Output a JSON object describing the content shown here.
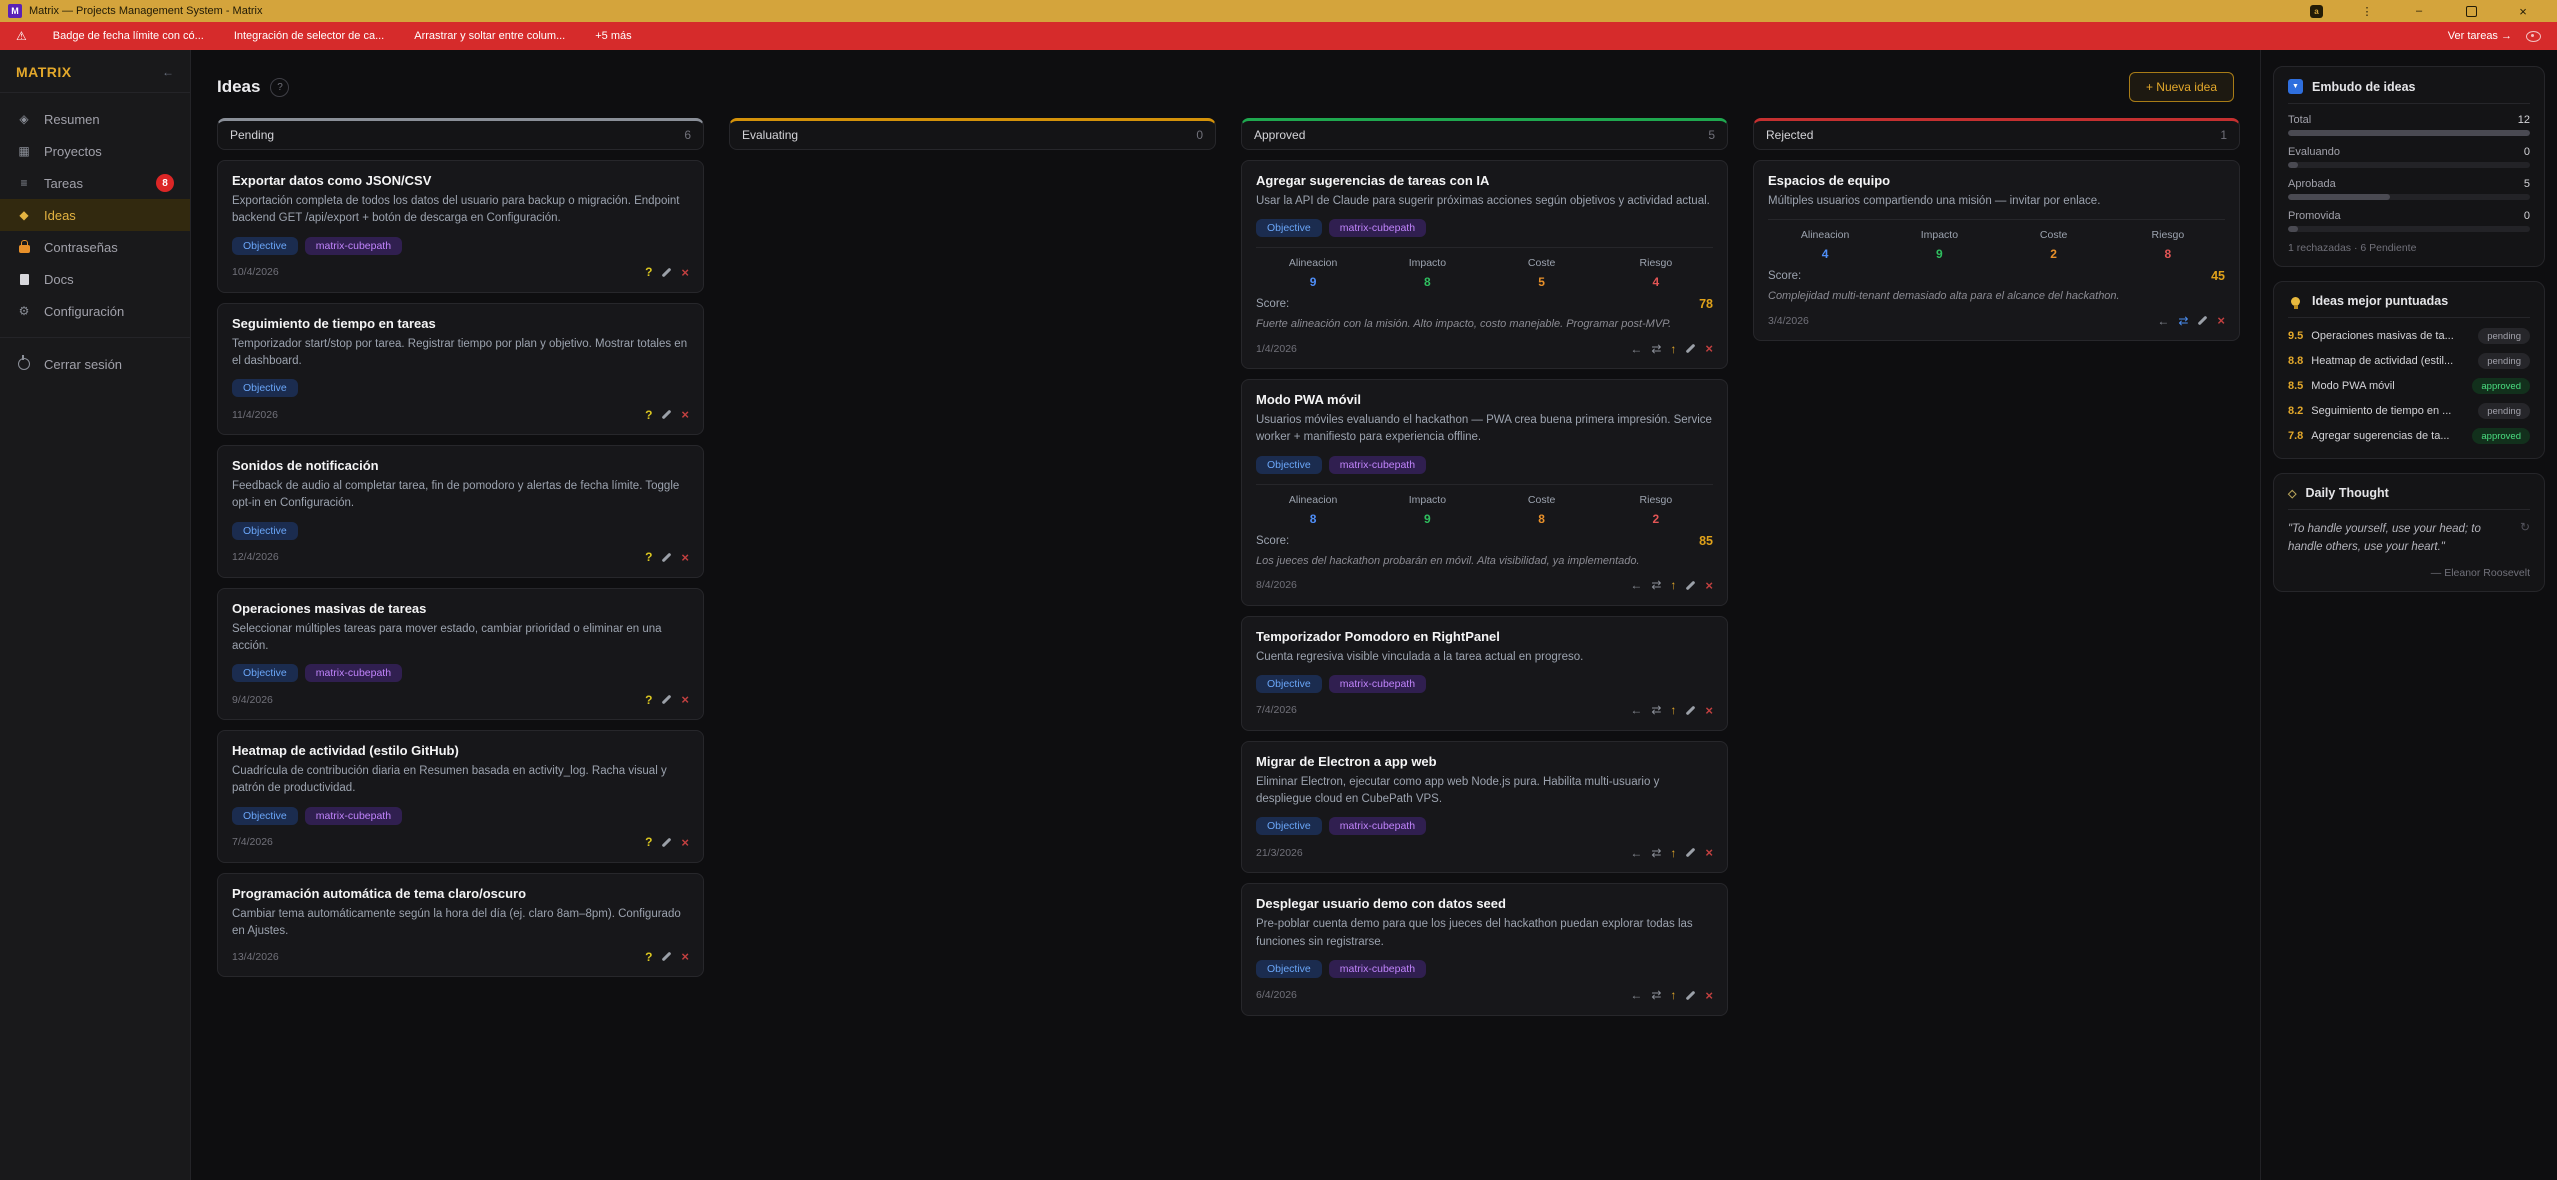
{
  "titlebar": {
    "icon_letter": "M",
    "title": "Matrix — Projects Management System - Matrix"
  },
  "banner": {
    "items": [
      "Badge de fecha límite con có...",
      "Integración de selector de ca...",
      "Arrastrar y soltar entre colum...",
      "+5 más"
    ],
    "action": "Ver tareas →"
  },
  "glyphs": {
    "warning": "⚠",
    "translate": "a",
    "menu": "⋮",
    "minimize": "–",
    "close": "×",
    "collapse": "←",
    "help": "?",
    "funnel": "▼",
    "refresh": "↻",
    "daily_icon": "◇",
    "overview-icon": "◈",
    "projects-icon": "▦",
    "tasks-icon": "≡",
    "ideas-icon": "◆",
    "gear-icon": "⚙",
    "help-action": "?",
    "delete-action": "×",
    "back-action": "←",
    "move-action": "⇄",
    "promote-action": "↑"
  },
  "sidebar": {
    "brand": "MATRIX",
    "items": [
      {
        "id": "resumen",
        "label": "Resumen",
        "icon": "overview-icon",
        "glyph": true
      },
      {
        "id": "proyectos",
        "label": "Proyectos",
        "icon": "projects-icon",
        "glyph": true
      },
      {
        "id": "tareas",
        "label": "Tareas",
        "icon": "tasks-icon",
        "glyph": true,
        "badge": "8"
      },
      {
        "id": "ideas",
        "label": "Ideas",
        "icon": "ideas-icon",
        "glyph": true,
        "active": true
      },
      {
        "id": "contrasenas",
        "label": "Contraseñas",
        "icon": "lock-icon",
        "glyph": false
      },
      {
        "id": "docs",
        "label": "Docs",
        "icon": "doc-icon",
        "glyph": false
      },
      {
        "id": "configuracion",
        "label": "Configuración",
        "icon": "gear-icon",
        "glyph": true
      }
    ],
    "logout": {
      "id": "cerrar-sesion",
      "label": "Cerrar sesión",
      "icon": "power-icon"
    }
  },
  "header": {
    "title": "Ideas",
    "new_idea_button": "+ Nueva idea"
  },
  "board": {
    "metric_labels": [
      "Alineacion",
      "Impacto",
      "Coste",
      "Riesgo"
    ],
    "metric_colors": [
      "#4f8ef7",
      "#2fbf5f",
      "#e8902a",
      "#e25555"
    ],
    "score_label": "Score:",
    "tag_labels": {
      "objective": "Objective",
      "matrix": "matrix-cubepath"
    },
    "columns": [
      {
        "name": "Pending",
        "count": "6",
        "accent": "#8a8f98",
        "cards": [
          {
            "title": "Exportar datos como JSON/CSV",
            "desc": "Exportación completa de todos los datos del usuario para backup o migración. Endpoint backend GET /api/export + botón de descarga en Configuración.",
            "tags": [
              "objective",
              "matrix"
            ],
            "date": "10/4/2026",
            "actions": [
              "help",
              "edit",
              "delete"
            ]
          },
          {
            "title": "Seguimiento de tiempo en tareas",
            "desc": "Temporizador start/stop por tarea. Registrar tiempo por plan y objetivo. Mostrar totales en el dashboard.",
            "tags": [
              "objective"
            ],
            "date": "11/4/2026",
            "actions": [
              "help",
              "edit",
              "delete"
            ]
          },
          {
            "title": "Sonidos de notificación",
            "desc": "Feedback de audio al completar tarea, fin de pomodoro y alertas de fecha límite. Toggle opt-in en Configuración.",
            "tags": [
              "objective"
            ],
            "date": "12/4/2026",
            "actions": [
              "help",
              "edit",
              "delete"
            ]
          },
          {
            "title": "Operaciones masivas de tareas",
            "desc": "Seleccionar múltiples tareas para mover estado, cambiar prioridad o eliminar en una acción.",
            "tags": [
              "objective",
              "matrix"
            ],
            "date": "9/4/2026",
            "actions": [
              "help",
              "edit",
              "delete"
            ]
          },
          {
            "title": "Heatmap de actividad (estilo GitHub)",
            "desc": "Cuadrícula de contribución diaria en Resumen basada en activity_log. Racha visual y patrón de productividad.",
            "tags": [
              "objective",
              "matrix"
            ],
            "date": "7/4/2026",
            "actions": [
              "help",
              "edit",
              "delete"
            ]
          },
          {
            "title": "Programación automática de tema claro/oscuro",
            "desc": "Cambiar tema automáticamente según la hora del día (ej. claro 8am–8pm). Configurado en Ajustes.",
            "tags": [],
            "date": "13/4/2026",
            "actions": [
              "help",
              "edit",
              "delete"
            ]
          }
        ]
      },
      {
        "name": "Evaluating",
        "count": "0",
        "accent": "#d4920a",
        "cards": []
      },
      {
        "name": "Approved",
        "count": "5",
        "accent": "#1fa84f",
        "cards": [
          {
            "title": "Agregar sugerencias de tareas con IA",
            "desc": "Usar la API de Claude para sugerir próximas acciones según objetivos y actividad actual.",
            "tags": [
              "objective",
              "matrix"
            ],
            "metrics": {
              "values": [
                "9",
                "8",
                "5",
                "4"
              ],
              "score": "78",
              "note": "Fuerte alineación con la misión. Alto impacto, costo manejable. Programar post-MVP."
            },
            "date": "1/4/2026",
            "actions": [
              "back",
              "move",
              "promote",
              "edit",
              "delete"
            ]
          },
          {
            "title": "Modo PWA móvil",
            "desc": "Usuarios móviles evaluando el hackathon — PWA crea buena primera impresión. Service worker + manifiesto para experiencia offline.",
            "tags": [
              "objective",
              "matrix"
            ],
            "metrics": {
              "values": [
                "8",
                "9",
                "8",
                "2"
              ],
              "score": "85",
              "note": "Los jueces del hackathon probarán en móvil. Alta visibilidad, ya implementado."
            },
            "date": "8/4/2026",
            "actions": [
              "back",
              "move",
              "promote",
              "edit",
              "delete"
            ]
          },
          {
            "title": "Temporizador Pomodoro en RightPanel",
            "desc": "Cuenta regresiva visible vinculada a la tarea actual en progreso.",
            "tags": [
              "objective",
              "matrix"
            ],
            "date": "7/4/2026",
            "actions": [
              "back",
              "move",
              "promote",
              "edit",
              "delete"
            ]
          },
          {
            "title": "Migrar de Electron a app web",
            "desc": "Eliminar Electron, ejecutar como app web Node.js pura. Habilita multi-usuario y despliegue cloud en CubePath VPS.",
            "tags": [
              "objective",
              "matrix"
            ],
            "date": "21/3/2026",
            "actions": [
              "back",
              "move",
              "promote",
              "edit",
              "delete"
            ]
          },
          {
            "title": "Desplegar usuario demo con datos seed",
            "desc": "Pre-poblar cuenta demo para que los jueces del hackathon puedan explorar todas las funciones sin registrarse.",
            "tags": [
              "objective",
              "matrix"
            ],
            "date": "6/4/2026",
            "actions": [
              "back",
              "move",
              "promote",
              "edit",
              "delete"
            ]
          }
        ]
      },
      {
        "name": "Rejected",
        "count": "1",
        "accent": "#c53030",
        "cards": [
          {
            "title": "Espacios de equipo",
            "desc": "Múltiples usuarios compartiendo una misión — invitar por enlace.",
            "tags": [],
            "metrics": {
              "values": [
                "4",
                "9",
                "2",
                "8"
              ],
              "score": "45",
              "note": "Complejidad multi-tenant demasiado alta para el alcance del hackathon."
            },
            "date": "3/4/2026",
            "actions": [
              "back",
              "move-active",
              "edit",
              "delete"
            ]
          }
        ]
      }
    ]
  },
  "right_panel": {
    "funnel": {
      "title": "Embudo de ideas",
      "rows": [
        {
          "label": "Total",
          "value": "12",
          "pct": 100
        },
        {
          "label": "Evaluando",
          "value": "0",
          "pct": 4
        },
        {
          "label": "Aprobada",
          "value": "5",
          "pct": 42
        },
        {
          "label": "Promovida",
          "value": "0",
          "pct": 4
        }
      ],
      "footer": "1 rechazadas · 6 Pendiente"
    },
    "top_ideas": {
      "title": "Ideas mejor puntuadas",
      "items": [
        {
          "score": "9.5",
          "title": "Operaciones masivas de ta...",
          "status": "pending"
        },
        {
          "score": "8.8",
          "title": "Heatmap de actividad (estil...",
          "status": "pending"
        },
        {
          "score": "8.5",
          "title": "Modo PWA móvil",
          "status": "approved"
        },
        {
          "score": "8.2",
          "title": "Seguimiento de tiempo en ...",
          "status": "pending"
        },
        {
          "score": "7.8",
          "title": "Agregar sugerencias de ta...",
          "status": "approved"
        }
      ]
    },
    "daily": {
      "title": "Daily Thought",
      "quote": "\"To handle yourself, use your head; to handle others, use your heart.\"",
      "author": "— Eleanor Roosevelt"
    }
  }
}
